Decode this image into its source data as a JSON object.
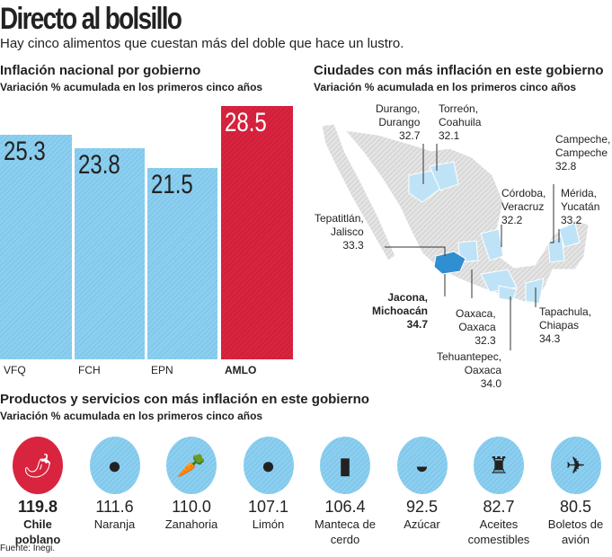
{
  "header": {
    "title": "Directo al bolsillo",
    "subtitle": "Hay cinco alimentos que cuestan más del doble que hace un lustro."
  },
  "national": {
    "title": "Inflación nacional por gobierno",
    "subtitle": "Variación % acumulada en los primeros cinco años"
  },
  "chart_data": {
    "type": "bar",
    "title": "Inflación nacional por gobierno",
    "subtitle": "Variación % acumulada en los primeros cinco años",
    "categories": [
      "VFQ",
      "FCH",
      "EPN",
      "AMLO"
    ],
    "values": [
      25.3,
      23.8,
      21.5,
      28.5
    ],
    "value_labels": [
      "25.3",
      "23.8",
      "21.5",
      "28.5"
    ],
    "ylim": [
      0,
      28.5
    ],
    "grid": false,
    "colors": {
      "default": "#8ccff0",
      "highlight": "#d9243f"
    }
  },
  "cities": {
    "title": "Ciudades con más inflación en este gobierno",
    "subtitle": "Variación % acumulada en los primeros cinco años",
    "items": [
      {
        "name": "Durango,\nDurango",
        "value": "32.7"
      },
      {
        "name": "Torreón,\nCoahuila",
        "value": "32.1"
      },
      {
        "name": "Campeche,\nCampeche",
        "value": "32.8"
      },
      {
        "name": "Córdoba,\nVeracruz",
        "value": "32.2"
      },
      {
        "name": "Mérida,\nYucatán",
        "value": "33.2"
      },
      {
        "name": "Tepatitlán,\nJalisco",
        "value": "33.3"
      },
      {
        "name": "Jacona,\nMichoacán",
        "value": "34.7"
      },
      {
        "name": "Oaxaca,\nOaxaca",
        "value": "32.3"
      },
      {
        "name": "Tapachula,\nChiapas",
        "value": "34.3"
      },
      {
        "name": "Tehuantepec,\nOaxaca",
        "value": "34.0"
      }
    ]
  },
  "products": {
    "title": "Productos y servicios con más inflación en este gobierno",
    "subtitle": "Variación % acumulada en los primeros cinco años",
    "items": [
      {
        "value": "119.8",
        "name": "Chile poblano",
        "icon": "chili-pepper-icon",
        "glyph": "🌶"
      },
      {
        "value": "111.6",
        "name": "Naranja",
        "icon": "orange-icon",
        "glyph": "●"
      },
      {
        "value": "110.0",
        "name": "Zanahoria",
        "icon": "carrot-icon",
        "glyph": "🥕"
      },
      {
        "value": "107.1",
        "name": "Limón",
        "icon": "lemon-icon",
        "glyph": "●"
      },
      {
        "value": "106.4",
        "name": "Manteca de cerdo",
        "icon": "lard-jar-icon",
        "glyph": "▮"
      },
      {
        "value": "92.5",
        "name": "Azúcar",
        "icon": "sugar-bowl-icon",
        "glyph": "◒"
      },
      {
        "value": "82.7",
        "name": "Aceites comestibles",
        "icon": "oil-bottle-icon",
        "glyph": "♜"
      },
      {
        "value": "80.5",
        "name": "Boletos de avión",
        "icon": "plane-ticket-icon",
        "glyph": "✈"
      }
    ]
  },
  "source": "Fuente: Inegi."
}
